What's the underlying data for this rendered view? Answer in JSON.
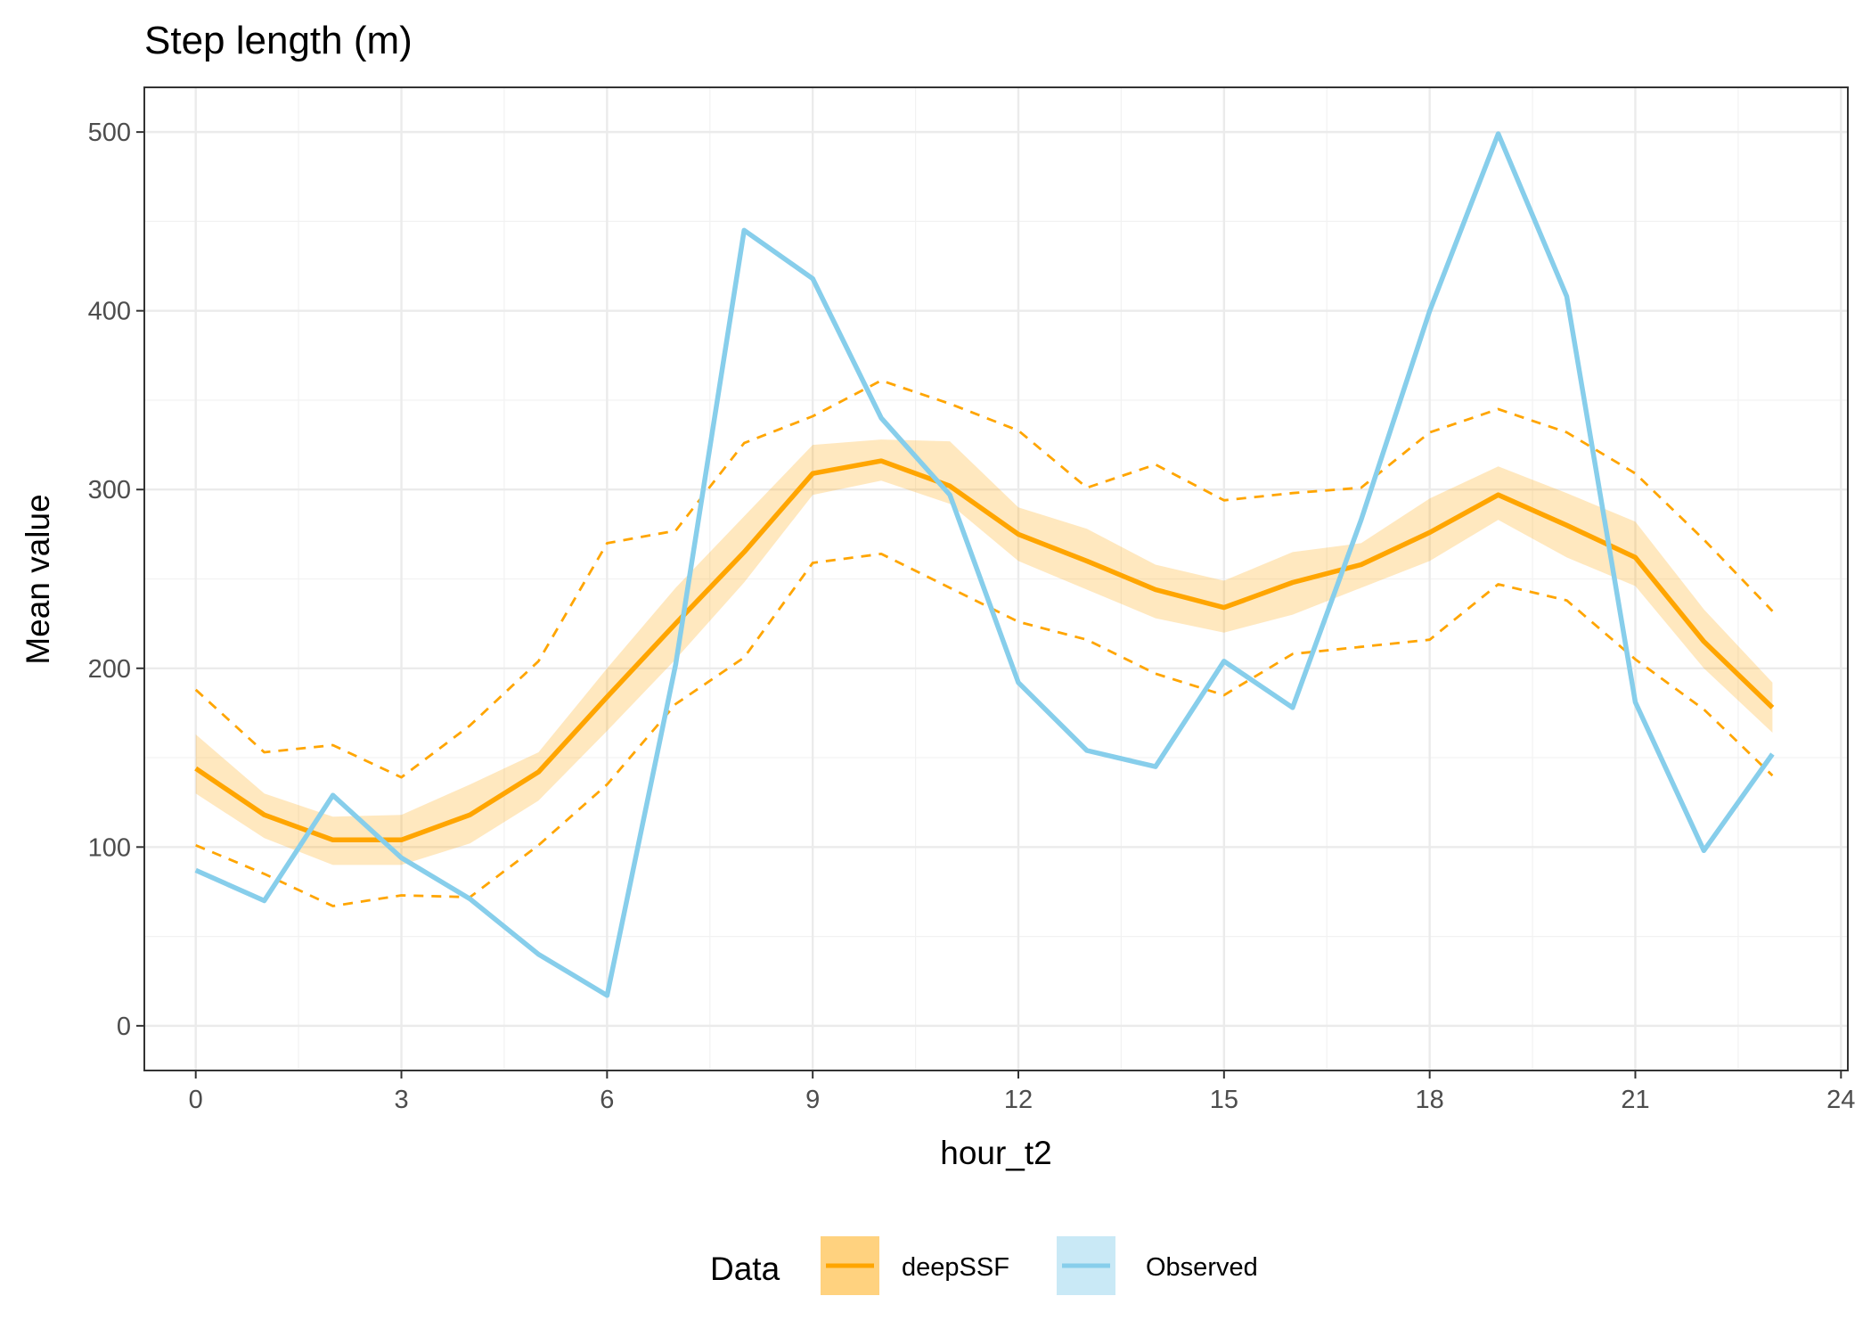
{
  "chart_data": {
    "type": "line",
    "title": "Step length (m)",
    "xlabel": "hour_t2",
    "ylabel": "Mean value",
    "xlim": [
      -0.75,
      24.1
    ],
    "ylim": [
      -25,
      525
    ],
    "x_ticks": [
      "0",
      "3",
      "6",
      "9",
      "12",
      "15",
      "18",
      "21",
      "24"
    ],
    "y_ticks": [
      "0",
      "100",
      "200",
      "300",
      "400",
      "500"
    ],
    "grid": true,
    "legend": {
      "title": "Data",
      "position": "bottom",
      "entries": [
        "deepSSF",
        "Observed"
      ]
    },
    "x": [
      0,
      1,
      2,
      3,
      4,
      5,
      6,
      7,
      8,
      9,
      10,
      11,
      12,
      13,
      14,
      15,
      16,
      17,
      18,
      19,
      20,
      21,
      22,
      23
    ],
    "series": [
      {
        "name": "deepSSF",
        "color": "#FFA500",
        "values": [
          144,
          118,
          104,
          104,
          118,
          142,
          184,
          225,
          265,
          309,
          316,
          302,
          275,
          260,
          244,
          234,
          248,
          258,
          276,
          297,
          280,
          262,
          215,
          178
        ],
        "band_lower": [
          130,
          105,
          90,
          90,
          102,
          126,
          165,
          205,
          248,
          297,
          305,
          292,
          260,
          244,
          228,
          220,
          230,
          245,
          260,
          283,
          262,
          246,
          200,
          164
        ],
        "band_upper": [
          163,
          130,
          117,
          118,
          135,
          153,
          200,
          245,
          285,
          325,
          328,
          327,
          290,
          278,
          258,
          249,
          265,
          270,
          295,
          313,
          298,
          282,
          233,
          192
        ],
        "dashed_lower": [
          101,
          85,
          67,
          73,
          72,
          101,
          135,
          180,
          206,
          259,
          264,
          245,
          226,
          216,
          197,
          185,
          208,
          212,
          216,
          247,
          238,
          205,
          177,
          140
        ],
        "dashed_upper": [
          188,
          153,
          157,
          139,
          168,
          204,
          270,
          277,
          326,
          341,
          361,
          348,
          333,
          301,
          314,
          294,
          298,
          301,
          332,
          345,
          332,
          309,
          272,
          232
        ]
      },
      {
        "name": "Observed",
        "color": "#87CEEB",
        "values": [
          87,
          70,
          129,
          94,
          71,
          40,
          17,
          202,
          445,
          418,
          340,
          297,
          192,
          154,
          145,
          204,
          178,
          283,
          400,
          499,
          408,
          181,
          98,
          152
        ]
      }
    ]
  }
}
